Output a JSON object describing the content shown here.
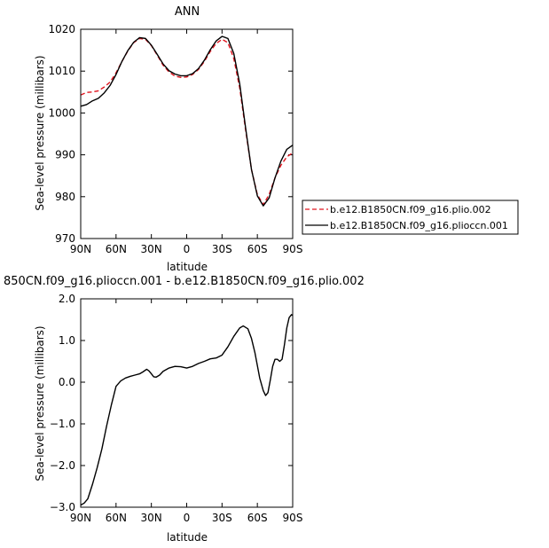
{
  "chart_data": [
    {
      "type": "line",
      "title": "ANN",
      "xlabel": "latitude",
      "ylabel": "Sea-level pressure (millibars)",
      "xlim": [
        90,
        -90
      ],
      "ylim": [
        970,
        1020
      ],
      "x_tick_values": [
        90,
        60,
        30,
        0,
        -30,
        -60,
        -90
      ],
      "x_tick_labels": [
        "90N",
        "60N",
        "30N",
        "0",
        "30S",
        "60S",
        "90S"
      ],
      "y_tick_values": [
        970,
        980,
        990,
        1000,
        1010,
        1020
      ],
      "y_tick_labels": [
        "970",
        "980",
        "990",
        "1000",
        "1010",
        "1020"
      ],
      "grid": false,
      "legend_position": "right",
      "series": [
        {
          "name": "b.e12.B1850CN.f09_g16.plio.002",
          "color": "#e0141e",
          "dash": "dashed",
          "x": [
            90,
            85,
            80,
            75,
            70,
            65,
            60,
            55,
            50,
            45,
            40,
            35,
            30,
            25,
            20,
            15,
            10,
            5,
            0,
            -5,
            -10,
            -15,
            -20,
            -25,
            -30,
            -35,
            -40,
            -45,
            -50,
            -55,
            -60,
            -65,
            -70,
            -75,
            -80,
            -85,
            -90
          ],
          "y": [
            1004.3,
            1004.9,
            1005.0,
            1005.3,
            1006.2,
            1007.4,
            1009.6,
            1012.3,
            1014.8,
            1016.8,
            1017.8,
            1017.6,
            1016.1,
            1013.8,
            1011.4,
            1009.8,
            1008.8,
            1008.5,
            1008.6,
            1009.2,
            1010.4,
            1012.3,
            1014.7,
            1016.6,
            1017.6,
            1016.8,
            1013.0,
            1006.0,
            996.0,
            986.5,
            980.5,
            978.1,
            980.5,
            984.5,
            987.5,
            989.5,
            990.5
          ]
        },
        {
          "name": "b.e12.B1850CN.f09_g16.plioccn.001",
          "color": "#000000",
          "dash": "solid",
          "x": [
            90,
            85,
            80,
            75,
            70,
            65,
            60,
            55,
            50,
            45,
            40,
            35,
            30,
            25,
            20,
            15,
            10,
            5,
            0,
            -5,
            -10,
            -15,
            -20,
            -25,
            -30,
            -35,
            -40,
            -45,
            -50,
            -55,
            -60,
            -65,
            -70,
            -75,
            -80,
            -85,
            -90
          ],
          "y": [
            1001.6,
            1002.0,
            1002.9,
            1003.5,
            1004.8,
            1006.6,
            1009.2,
            1012.3,
            1014.9,
            1016.9,
            1018.0,
            1017.8,
            1016.2,
            1014.0,
            1011.7,
            1010.1,
            1009.3,
            1008.9,
            1008.9,
            1009.4,
            1010.6,
            1012.6,
            1015.1,
            1017.2,
            1018.3,
            1017.8,
            1014.2,
            1007.0,
            996.5,
            986.5,
            980.2,
            977.8,
            979.7,
            984.5,
            988.5,
            991.3,
            992.3
          ]
        }
      ]
    },
    {
      "type": "line",
      "title": "850CN.f09_g16.plioccn.001 - b.e12.B1850CN.f09_g16.plio.002",
      "xlabel": "latitude",
      "ylabel": "Sea-level pressure (millibars)",
      "xlim": [
        90,
        -90
      ],
      "ylim": [
        -3.0,
        2.0
      ],
      "x_tick_values": [
        90,
        60,
        30,
        0,
        -30,
        -60,
        -90
      ],
      "x_tick_labels": [
        "90N",
        "60N",
        "30N",
        "0",
        "30S",
        "60S",
        "90S"
      ],
      "y_tick_values": [
        -3.0,
        -2.0,
        -1.0,
        0.0,
        1.0,
        2.0
      ],
      "y_tick_labels": [
        "−3.0",
        "−2.0",
        "−1.0",
        "0.0",
        "1.0",
        "2.0"
      ],
      "grid": false,
      "series": [
        {
          "color": "#000000",
          "dash": "solid",
          "x": [
            90,
            87,
            84,
            80,
            76,
            72,
            68,
            64,
            60,
            56,
            52,
            48,
            44,
            40,
            37,
            34,
            32,
            30,
            28,
            26,
            23,
            20,
            15,
            10,
            5,
            0,
            -5,
            -10,
            -15,
            -20,
            -25,
            -30,
            -35,
            -40,
            -45,
            -48,
            -52,
            -55,
            -58,
            -62,
            -65,
            -67,
            -69,
            -71,
            -73,
            -75,
            -77,
            -79,
            -81,
            -83,
            -85,
            -87,
            -89,
            -90
          ],
          "y": [
            -2.95,
            -2.9,
            -2.8,
            -2.45,
            -2.05,
            -1.6,
            -1.05,
            -0.55,
            -0.1,
            0.03,
            0.1,
            0.14,
            0.17,
            0.2,
            0.25,
            0.31,
            0.27,
            0.2,
            0.13,
            0.12,
            0.17,
            0.26,
            0.34,
            0.38,
            0.37,
            0.34,
            0.38,
            0.45,
            0.5,
            0.56,
            0.58,
            0.65,
            0.85,
            1.1,
            1.3,
            1.35,
            1.28,
            1.05,
            0.7,
            0.1,
            -0.2,
            -0.32,
            -0.25,
            0.05,
            0.38,
            0.55,
            0.55,
            0.5,
            0.55,
            0.9,
            1.3,
            1.55,
            1.62,
            1.6
          ]
        }
      ]
    }
  ]
}
